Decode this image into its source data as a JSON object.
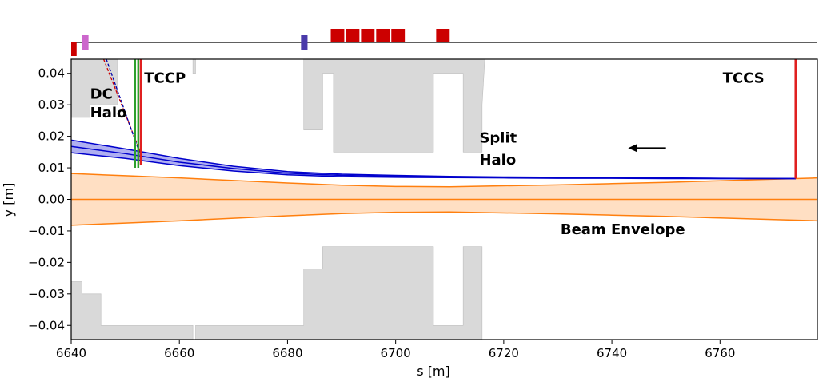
{
  "chart_data": {
    "type": "area",
    "xlabel": "s [m]",
    "ylabel": "y [m]",
    "xlim": [
      6640,
      6778
    ],
    "ylim": [
      -0.0445,
      0.0445
    ],
    "xticks": [
      6640,
      6660,
      6680,
      6700,
      6720,
      6740,
      6760
    ],
    "yticks": [
      -0.04,
      -0.03,
      -0.02,
      -0.01,
      0.0,
      0.01,
      0.02,
      0.03,
      0.04
    ],
    "xtick_labels": [
      "6640",
      "6660",
      "6680",
      "6700",
      "6720",
      "6740",
      "6760"
    ],
    "ytick_labels": [
      "−0.04",
      "−0.03",
      "−0.02",
      "−0.01",
      "0.00",
      "0.01",
      "0.02",
      "0.03",
      "0.04"
    ],
    "aperture": {
      "color": "#d9d9d9",
      "top": [
        [
          6640,
          0.04
        ],
        [
          6640,
          0.026
        ],
        [
          6643.5,
          0.026
        ],
        [
          6643.5,
          0.03
        ],
        [
          6648.5,
          0.03
        ],
        [
          6648.5,
          0.0445
        ],
        [
          6662.5,
          0.0445
        ],
        [
          6662.5,
          0.04
        ],
        [
          6663,
          0.04
        ],
        [
          6663,
          0.0445
        ],
        [
          6683,
          0.0445
        ],
        [
          6683,
          0.04
        ],
        [
          6683,
          0.022
        ],
        [
          6686.5,
          0.022
        ],
        [
          6686.5,
          0.04
        ],
        [
          6688.5,
          0.04
        ],
        [
          6688.5,
          0.015
        ],
        [
          6707,
          0.015
        ],
        [
          6707,
          0.04
        ],
        [
          6712.5,
          0.04
        ],
        [
          6712.5,
          0.015
        ],
        [
          6716,
          0.015
        ],
        [
          6716,
          0.03
        ],
        [
          6716.5,
          0.0445
        ],
        [
          6778,
          0.0445
        ],
        [
          6778,
          0.04
        ]
      ],
      "bottom": [
        [
          6640,
          -0.04
        ],
        [
          6640,
          -0.026
        ],
        [
          6642,
          -0.026
        ],
        [
          6642,
          -0.03
        ],
        [
          6645.5,
          -0.03
        ],
        [
          6645.5,
          -0.04
        ],
        [
          6662.5,
          -0.04
        ],
        [
          6662.5,
          -0.0445
        ],
        [
          6663,
          -0.0445
        ],
        [
          6663,
          -0.04
        ],
        [
          6683,
          -0.04
        ],
        [
          6683,
          -0.022
        ],
        [
          6686.5,
          -0.022
        ],
        [
          6686.5,
          -0.015
        ],
        [
          6707,
          -0.015
        ],
        [
          6707,
          -0.04
        ],
        [
          6712.5,
          -0.04
        ],
        [
          6712.5,
          -0.015
        ],
        [
          6716,
          -0.015
        ],
        [
          6716,
          -0.0445
        ],
        [
          6778,
          -0.0445
        ],
        [
          6778,
          -0.04
        ]
      ]
    },
    "beam_envelope": {
      "label": "Beam Envelope",
      "color": "#ff7f0e",
      "fill": "#ffd9b8",
      "s": [
        6640,
        6650,
        6660,
        6670,
        6680,
        6690,
        6700,
        6710,
        6720,
        6730,
        6740,
        6750,
        6760,
        6770,
        6778
      ],
      "upper": [
        0.0082,
        0.0075,
        0.0068,
        0.006,
        0.0052,
        0.0045,
        0.0041,
        0.004,
        0.0043,
        0.0046,
        0.005,
        0.0054,
        0.0059,
        0.0064,
        0.0068
      ],
      "lower": [
        -0.0082,
        -0.0075,
        -0.0068,
        -0.006,
        -0.0052,
        -0.0045,
        -0.0041,
        -0.004,
        -0.0043,
        -0.0046,
        -0.005,
        -0.0054,
        -0.0059,
        -0.0064,
        -0.0068
      ],
      "center": 0.0
    },
    "split_halo": {
      "label": "Split Halo",
      "color": "#0000cc",
      "fill": "#a6a6f0",
      "s": [
        6640,
        6650,
        6660,
        6670,
        6680,
        6690,
        6700,
        6710,
        6720,
        6730,
        6740,
        6750,
        6760,
        6774
      ],
      "upper": [
        0.0188,
        0.016,
        0.013,
        0.0105,
        0.0088,
        0.008,
        0.0076,
        0.0073,
        0.0071,
        0.007,
        0.0069,
        0.0068,
        0.0067,
        0.0066
      ],
      "middle": [
        0.0168,
        0.0145,
        0.0118,
        0.0098,
        0.0083,
        0.0076,
        0.0073,
        0.0071,
        0.007,
        0.0069,
        0.0068,
        0.0067,
        0.0066,
        0.0066
      ],
      "lower": [
        0.0148,
        0.013,
        0.0107,
        0.009,
        0.0078,
        0.0072,
        0.007,
        0.0069,
        0.0068,
        0.0067,
        0.0067,
        0.0066,
        0.0066,
        0.0066
      ]
    },
    "dc_halo": {
      "label": "DC Halo",
      "color": "#1a6b1a",
      "lines": [
        [
          [
            6646,
            0.0445
          ],
          [
            6653,
            0.014
          ]
        ],
        [
          [
            6646.5,
            0.0445
          ],
          [
            6653,
            0.013
          ]
        ]
      ]
    },
    "green_vertical_lines": {
      "color": "#2ca02c",
      "s": [
        6651.8,
        6652.4
      ],
      "y_range": [
        0.01,
        0.0445
      ]
    },
    "collimators": [
      {
        "label": "TCCP",
        "s": 6652.9,
        "y_range": [
          0.011,
          0.0445
        ],
        "color": "#e02020"
      },
      {
        "label": "TCCS",
        "s": 6774,
        "y_range": [
          0.0066,
          0.0445
        ],
        "color": "#e02020"
      }
    ],
    "direction_arrow": {
      "from_s": 6750,
      "to_s": 6743,
      "y": 0.0163,
      "color": "#000000"
    },
    "lattice": {
      "elements": [
        {
          "s0": 6640,
          "s1": 6641,
          "level": -1,
          "color": "#cc0000"
        },
        {
          "s0": 6642,
          "s1": 6643.2,
          "level": 0,
          "color": "#cc66cc"
        },
        {
          "s0": 6682.5,
          "s1": 6683.7,
          "level": 0,
          "color": "#4a3aaa"
        },
        {
          "s0": 6688,
          "s1": 6690.5,
          "level": 1,
          "color": "#cc0000"
        },
        {
          "s0": 6690.8,
          "s1": 6693.3,
          "level": 1,
          "color": "#cc0000"
        },
        {
          "s0": 6693.6,
          "s1": 6696.1,
          "level": 1,
          "color": "#cc0000"
        },
        {
          "s0": 6696.4,
          "s1": 6698.9,
          "level": 1,
          "color": "#cc0000"
        },
        {
          "s0": 6699.2,
          "s1": 6701.7,
          "level": 1,
          "color": "#cc0000"
        },
        {
          "s0": 6707.5,
          "s1": 6710,
          "level": 1,
          "color": "#cc0000"
        }
      ]
    },
    "annotations": [
      {
        "text": "DC",
        "s": 6643.5,
        "y": 0.032
      },
      {
        "text": "Halo",
        "s": 6643.5,
        "y": 0.026
      },
      {
        "text": "TCCP",
        "s": 6653.5,
        "y": 0.037
      },
      {
        "text": "TCCS",
        "s": 6760.5,
        "y": 0.037
      },
      {
        "text": "Split",
        "s": 6715.5,
        "y": 0.018
      },
      {
        "text": "Halo",
        "s": 6715.5,
        "y": 0.011
      },
      {
        "text": "Beam Envelope",
        "s": 6730.5,
        "y": -0.011
      }
    ]
  }
}
